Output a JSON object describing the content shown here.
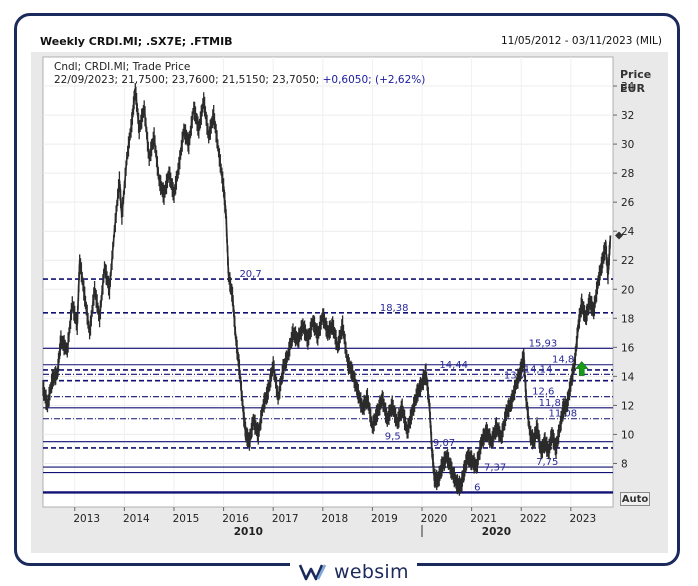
{
  "header": {
    "title": "Weekly CRDI.MI; .SX7E; .FTMIB",
    "date_range": "11/05/2012 - 03/11/2023 (MIL)"
  },
  "legend": {
    "line1": "Cndl; CRDI.MI; Trade Price",
    "line2_ohlc": "22/09/2023; 21,7500; 23,7600; 21,5150; 23,7050;",
    "line2_change": "+0,6050; (+2,62%)"
  },
  "controls": {
    "auto_label": "Auto"
  },
  "brand": {
    "name": "websim"
  },
  "colors": {
    "price_line": "#2b2b2b",
    "level_line": "#101075",
    "level_label": "#2a2a9a",
    "up_arrow": "#1a9a1a"
  },
  "chart_data": {
    "type": "candlestick",
    "title": "Weekly CRDI.MI; .SX7E; .FTMIB",
    "ylabel": "Price EUR",
    "currency": "EUR",
    "ylim": [
      5,
      36
    ],
    "y_ticks": [
      8,
      10,
      12,
      14,
      16,
      18,
      20,
      22,
      24,
      26,
      28,
      30,
      32,
      34
    ],
    "x_ticks": [
      "2013",
      "2014",
      "2015",
      "2016",
      "2017",
      "2018",
      "2019",
      "2020",
      "2021",
      "2022",
      "2023"
    ],
    "x_groups": [
      "2010",
      "2020"
    ],
    "last_price": 23.7,
    "price_path": [
      [
        2012.36,
        13.2
      ],
      [
        2012.45,
        12.0
      ],
      [
        2012.55,
        13.8
      ],
      [
        2012.65,
        14.2
      ],
      [
        2012.72,
        16.5
      ],
      [
        2012.85,
        15.8
      ],
      [
        2012.95,
        19.0
      ],
      [
        2013.05,
        17.5
      ],
      [
        2013.1,
        22.0
      ],
      [
        2013.2,
        19.5
      ],
      [
        2013.3,
        17.0
      ],
      [
        2013.4,
        20.0
      ],
      [
        2013.5,
        18.0
      ],
      [
        2013.6,
        21.5
      ],
      [
        2013.7,
        20.0
      ],
      [
        2013.8,
        24.0
      ],
      [
        2013.9,
        27.5
      ],
      [
        2013.95,
        25.0
      ],
      [
        2014.05,
        29.0
      ],
      [
        2014.15,
        31.5
      ],
      [
        2014.22,
        33.8
      ],
      [
        2014.3,
        31.0
      ],
      [
        2014.4,
        32.5
      ],
      [
        2014.5,
        29.0
      ],
      [
        2014.6,
        30.5
      ],
      [
        2014.7,
        27.5
      ],
      [
        2014.8,
        26.5
      ],
      [
        2014.9,
        28.0
      ],
      [
        2015.0,
        26.5
      ],
      [
        2015.1,
        28.5
      ],
      [
        2015.2,
        31.0
      ],
      [
        2015.3,
        30.0
      ],
      [
        2015.4,
        32.5
      ],
      [
        2015.5,
        31.0
      ],
      [
        2015.6,
        33.0
      ],
      [
        2015.7,
        30.5
      ],
      [
        2015.8,
        32.0
      ],
      [
        2015.9,
        29.5
      ],
      [
        2016.0,
        27.0
      ],
      [
        2016.05,
        25.0
      ],
      [
        2016.1,
        21.0
      ],
      [
        2016.18,
        19.5
      ],
      [
        2016.25,
        16.5
      ],
      [
        2016.32,
        14.5
      ],
      [
        2016.4,
        11.5
      ],
      [
        2016.45,
        10.0
      ],
      [
        2016.52,
        9.5
      ],
      [
        2016.6,
        11.0
      ],
      [
        2016.7,
        10.0
      ],
      [
        2016.8,
        12.0
      ],
      [
        2016.9,
        13.0
      ],
      [
        2017.0,
        14.8
      ],
      [
        2017.1,
        12.5
      ],
      [
        2017.2,
        14.5
      ],
      [
        2017.3,
        15.5
      ],
      [
        2017.4,
        17.0
      ],
      [
        2017.5,
        16.5
      ],
      [
        2017.6,
        17.5
      ],
      [
        2017.7,
        16.5
      ],
      [
        2017.8,
        17.8
      ],
      [
        2017.9,
        16.8
      ],
      [
        2018.0,
        18.2
      ],
      [
        2018.1,
        17.0
      ],
      [
        2018.2,
        17.5
      ],
      [
        2018.3,
        16.0
      ],
      [
        2018.4,
        17.5
      ],
      [
        2018.5,
        15.0
      ],
      [
        2018.6,
        14.2
      ],
      [
        2018.7,
        13.0
      ],
      [
        2018.8,
        11.8
      ],
      [
        2018.9,
        12.5
      ],
      [
        2019.0,
        10.5
      ],
      [
        2019.1,
        11.5
      ],
      [
        2019.2,
        12.5
      ],
      [
        2019.3,
        11.0
      ],
      [
        2019.4,
        12.0
      ],
      [
        2019.5,
        10.8
      ],
      [
        2019.6,
        11.8
      ],
      [
        2019.7,
        10.2
      ],
      [
        2019.8,
        11.5
      ],
      [
        2019.9,
        12.8
      ],
      [
        2020.0,
        13.5
      ],
      [
        2020.08,
        14.2
      ],
      [
        2020.15,
        12.0
      ],
      [
        2020.2,
        9.0
      ],
      [
        2020.25,
        7.0
      ],
      [
        2020.32,
        6.8
      ],
      [
        2020.4,
        7.8
      ],
      [
        2020.5,
        8.5
      ],
      [
        2020.6,
        7.5
      ],
      [
        2020.7,
        6.6
      ],
      [
        2020.78,
        6.4
      ],
      [
        2020.85,
        7.5
      ],
      [
        2020.92,
        8.5
      ],
      [
        2021.0,
        8.2
      ],
      [
        2021.1,
        7.8
      ],
      [
        2021.2,
        9.5
      ],
      [
        2021.3,
        10.2
      ],
      [
        2021.4,
        9.5
      ],
      [
        2021.5,
        10.5
      ],
      [
        2021.6,
        9.8
      ],
      [
        2021.7,
        11.5
      ],
      [
        2021.8,
        12.2
      ],
      [
        2021.9,
        13.5
      ],
      [
        2022.0,
        14.5
      ],
      [
        2022.05,
        15.5
      ],
      [
        2022.1,
        12.5
      ],
      [
        2022.18,
        10.0
      ],
      [
        2022.25,
        9.5
      ],
      [
        2022.32,
        10.5
      ],
      [
        2022.4,
        8.8
      ],
      [
        2022.48,
        9.5
      ],
      [
        2022.55,
        8.8
      ],
      [
        2022.62,
        10.0
      ],
      [
        2022.7,
        9.0
      ],
      [
        2022.78,
        10.5
      ],
      [
        2022.85,
        11.8
      ],
      [
        2022.92,
        12.0
      ],
      [
        2023.0,
        13.5
      ],
      [
        2023.08,
        15.0
      ],
      [
        2023.15,
        17.5
      ],
      [
        2023.22,
        19.0
      ],
      [
        2023.3,
        18.0
      ],
      [
        2023.38,
        19.2
      ],
      [
        2023.46,
        18.5
      ],
      [
        2023.55,
        20.5
      ],
      [
        2023.63,
        21.8
      ],
      [
        2023.7,
        23.0
      ],
      [
        2023.75,
        21.0
      ],
      [
        2023.8,
        23.7
      ]
    ],
    "levels": [
      {
        "value": 20.7,
        "label": "20,7",
        "style": "dashed",
        "label_x": 2016.32
      },
      {
        "value": 18.38,
        "label": "18,38",
        "style": "dashed",
        "label_x": 2019.15
      },
      {
        "value": 15.93,
        "label": "15,93",
        "style": "solid",
        "label_x": 2022.15
      },
      {
        "value": 14.8,
        "label": "14,8",
        "style": "solid",
        "label_x": 2022.62
      },
      {
        "value": 14.44,
        "label": "14,44",
        "style": "dashed",
        "label_x": 2020.35
      },
      {
        "value": 14.14,
        "label": "14,14",
        "style": "dashdot",
        "label_x": 2022.05
      },
      {
        "value": 13.7,
        "label": "13,7",
        "style": "dashed",
        "label_x": 2021.65
      },
      {
        "value": 12.6,
        "label": "12,6",
        "style": "dashdot",
        "label_x": 2022.22
      },
      {
        "value": 11.83,
        "label": "11,83",
        "style": "solid",
        "label_x": 2022.35
      },
      {
        "value": 11.08,
        "label": "11,08",
        "style": "dashdot",
        "label_x": 2022.55
      },
      {
        "value": 9.5,
        "label": "9,5",
        "style": "solid",
        "label_x": 2019.25
      },
      {
        "value": 9.07,
        "label": "9,07",
        "style": "dashed",
        "label_x": 2020.22
      },
      {
        "value": 7.75,
        "label": "7,75",
        "style": "solid",
        "label_x": 2022.3
      },
      {
        "value": 7.37,
        "label": "7,37",
        "style": "solid",
        "label_x": 2021.25
      },
      {
        "value": 6,
        "label": "6",
        "style": "solid_thick",
        "label_x": 2021.05
      }
    ],
    "signal": {
      "type": "up_arrow",
      "x": 2023.22,
      "y": 14.4
    }
  }
}
